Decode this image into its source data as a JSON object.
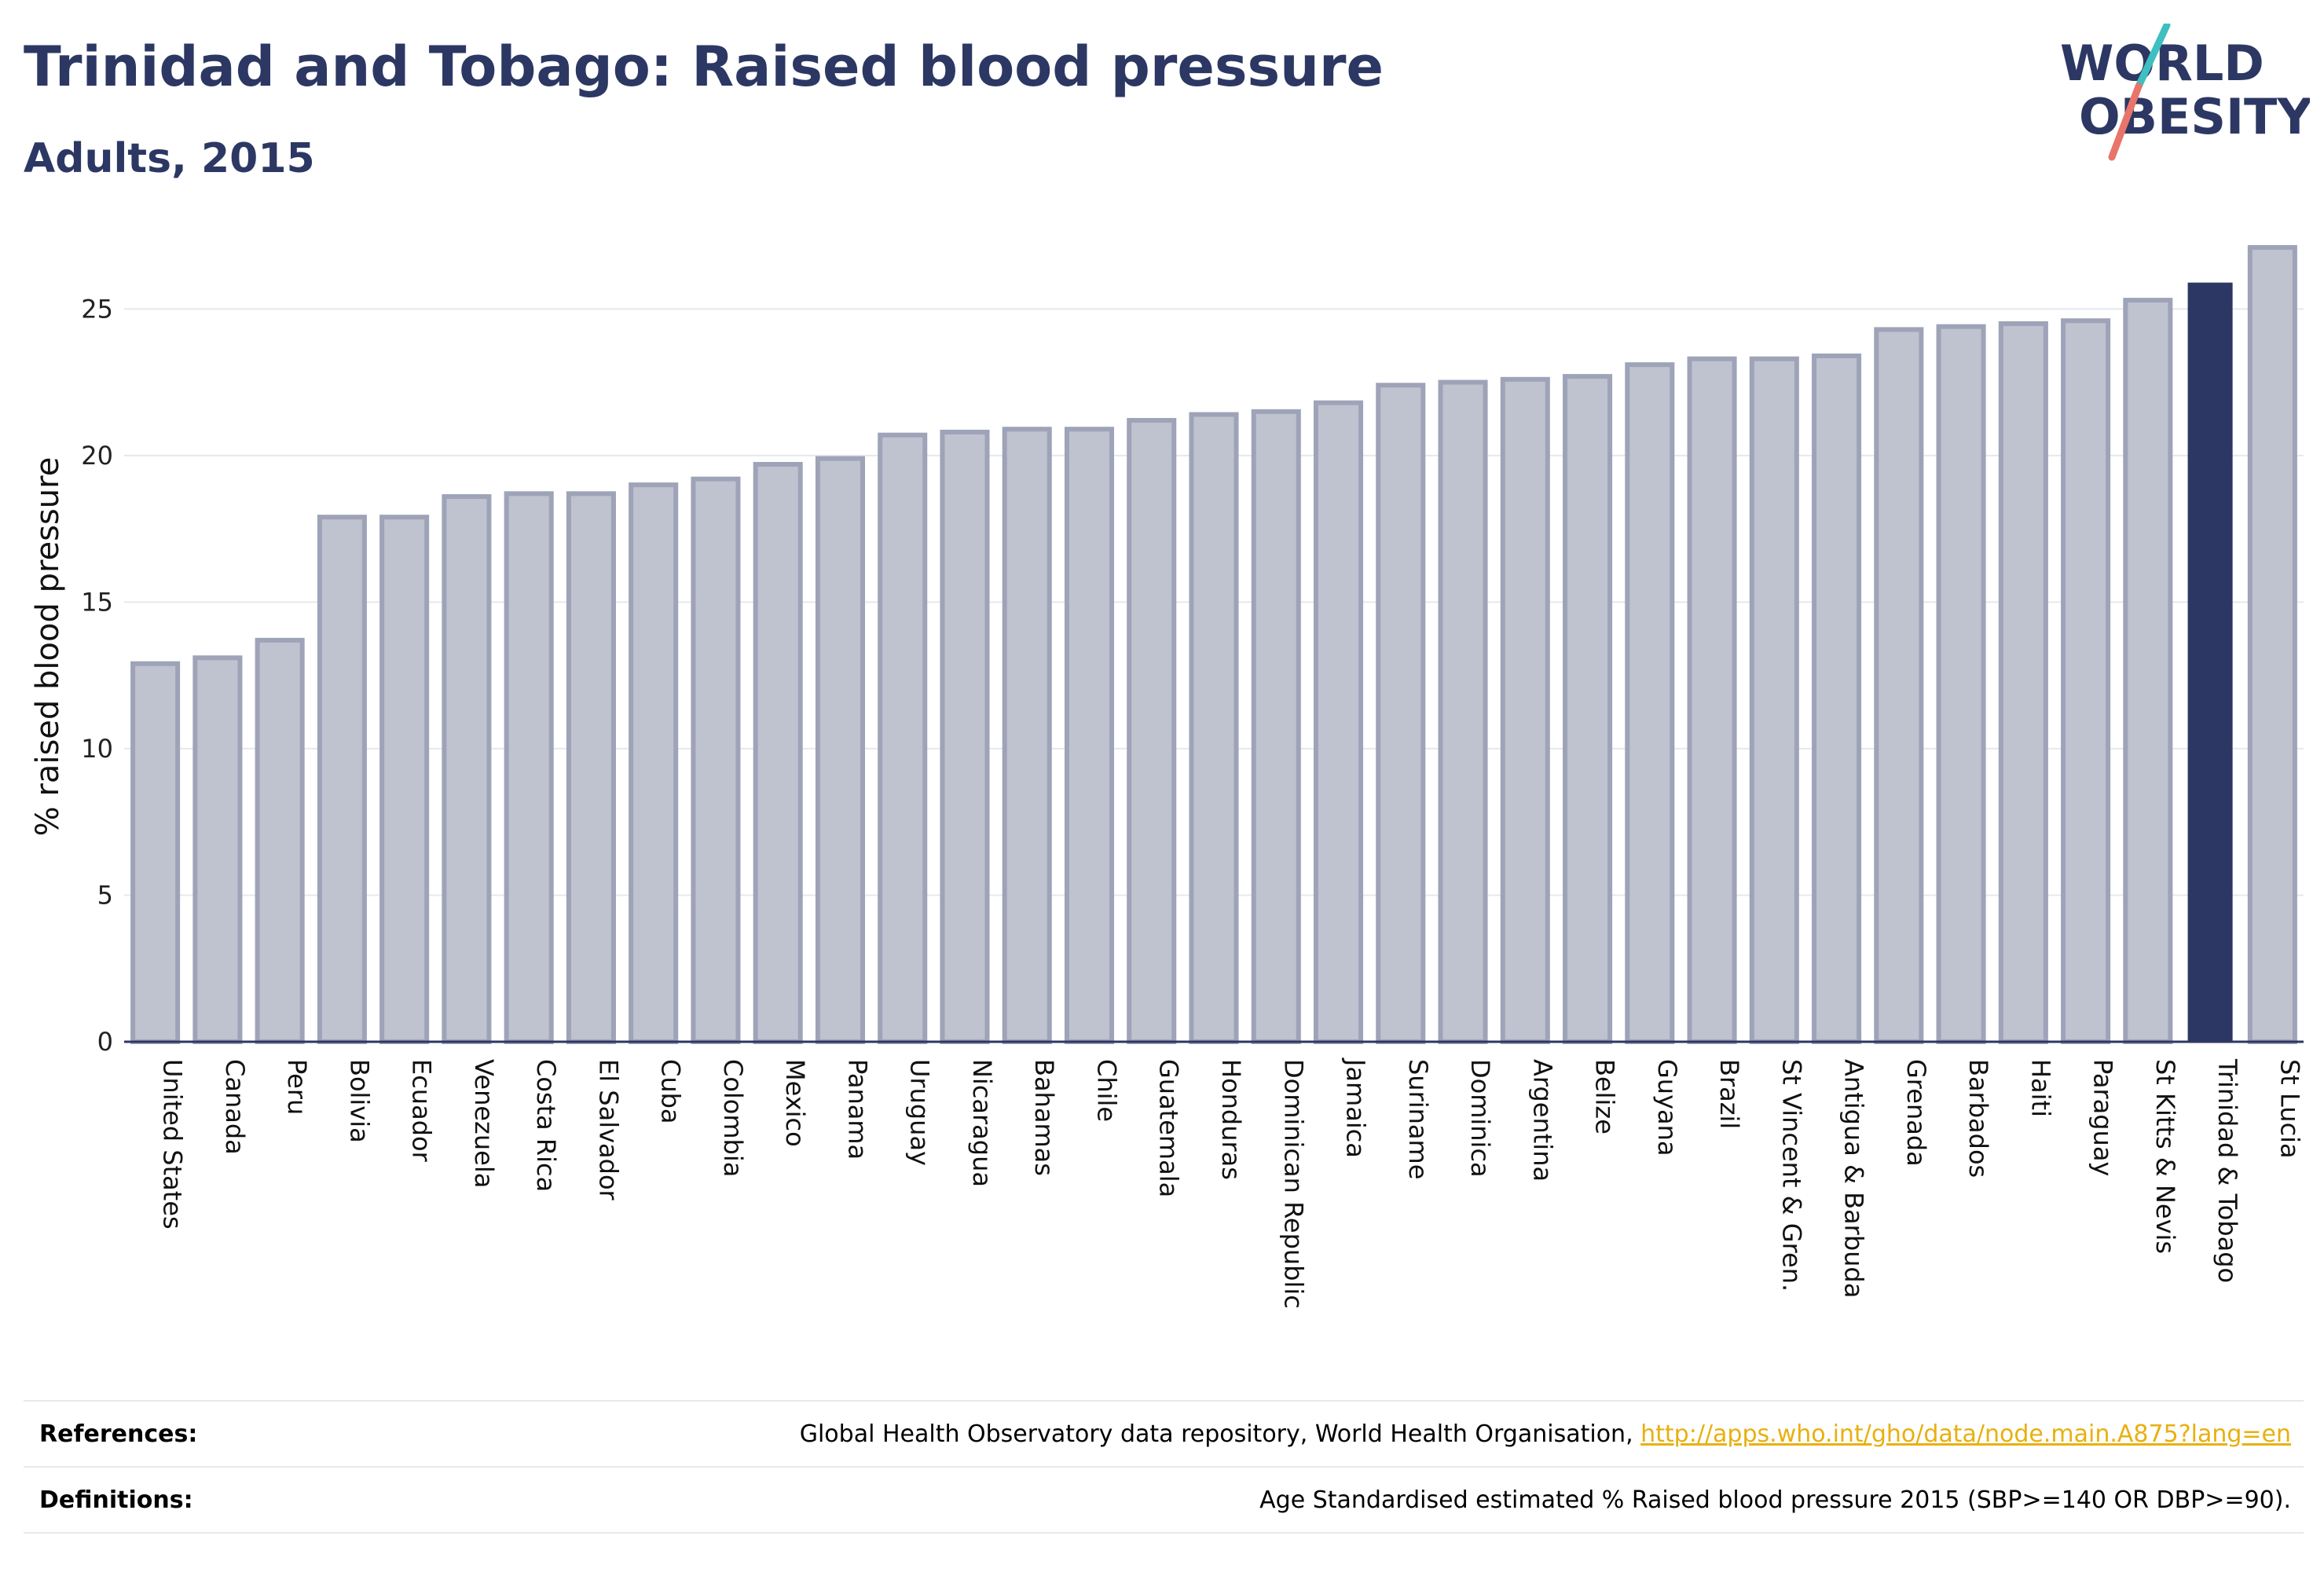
{
  "title": "Trinidad and Tobago: Raised blood pressure",
  "subtitle": "Adults, 2015",
  "logo": {
    "line1": "WORLD",
    "line2": "OBESITY",
    "colors": {
      "text": "#2c3863",
      "slash_teal": "#3fbfc0",
      "slash_coral": "#e8746a"
    }
  },
  "chart_data": {
    "type": "bar",
    "ylabel": "% raised blood pressure",
    "ylim": [
      0,
      27.5
    ],
    "yticks": [
      0,
      5,
      10,
      15,
      20,
      25
    ],
    "grid": true,
    "categories": [
      "United States",
      "Canada",
      "Peru",
      "Bolivia",
      "Ecuador",
      "Venezuela",
      "Costa Rica",
      "El Salvador",
      "Cuba",
      "Colombia",
      "Mexico",
      "Panama",
      "Uruguay",
      "Nicaragua",
      "Bahamas",
      "Chile",
      "Guatemala",
      "Honduras",
      "Dominican Republic",
      "Jamaica",
      "Suriname",
      "Dominica",
      "Argentina",
      "Belize",
      "Guyana",
      "Brazil",
      "St Vincent & Gren.",
      "Antigua & Barbuda",
      "Grenada",
      "Barbados",
      "Haiti",
      "Paraguay",
      "St Kitts & Nevis",
      "Trinidad & Tobago",
      "St Lucia"
    ],
    "values": [
      12.9,
      13.1,
      13.7,
      17.9,
      17.9,
      18.6,
      18.7,
      18.7,
      19.0,
      19.2,
      19.7,
      19.9,
      20.7,
      20.8,
      20.9,
      20.9,
      21.2,
      21.4,
      21.5,
      21.8,
      22.4,
      22.5,
      22.6,
      22.7,
      23.1,
      23.3,
      23.3,
      23.4,
      24.3,
      24.4,
      24.5,
      24.6,
      25.3,
      25.9,
      27.1
    ],
    "highlight": "Trinidad & Tobago",
    "colors": {
      "bar_fill": "#bfc2cf",
      "bar_stroke": "#9ea3b8",
      "highlight_fill": "#2c3863"
    }
  },
  "footer": {
    "references_label": "References:",
    "references_text": "Global Health Observatory data repository, World Health Organisation, ",
    "references_link": "http://apps.who.int/gho/data/node.main.A875?lang=en",
    "definitions_label": "Definitions:",
    "definitions_text": "Age Standardised estimated % Raised blood pressure 2015 (SBP>=140 OR DBP>=90)."
  }
}
